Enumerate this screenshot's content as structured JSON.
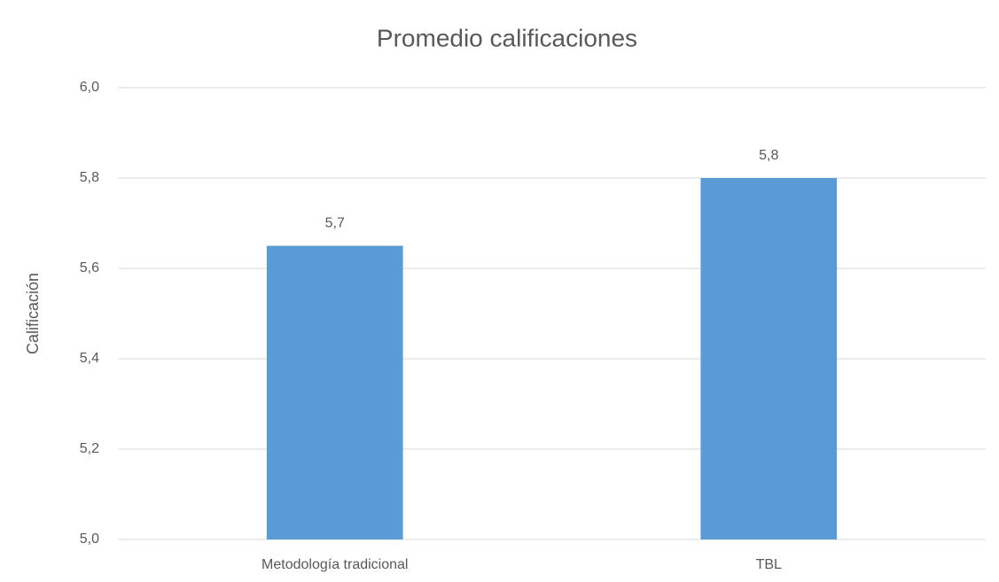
{
  "chart_data": {
    "type": "bar",
    "title": "Promedio calificaciones",
    "y_label": "Calificación",
    "categories": [
      "Metodología tradicional",
      "TBL"
    ],
    "values": [
      5.65,
      5.8
    ],
    "value_labels": [
      "5,7",
      "5,8"
    ],
    "color": "#5b9bd5",
    "ylim": [
      5.0,
      6.0
    ],
    "yticks": [
      {
        "value": 5.0,
        "label": "5,0"
      },
      {
        "value": 5.2,
        "label": "5,2"
      },
      {
        "value": 5.4,
        "label": "5,4"
      },
      {
        "value": 5.6,
        "label": "5,6"
      },
      {
        "value": 5.8,
        "label": "5,8"
      },
      {
        "value": 6.0,
        "label": "6,0"
      }
    ],
    "grid": true
  }
}
